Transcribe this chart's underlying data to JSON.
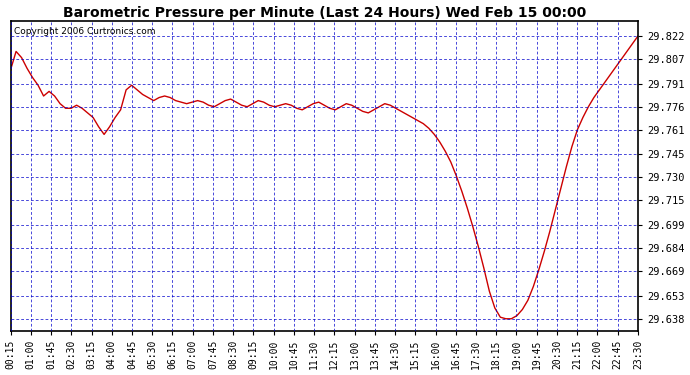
{
  "title": "Barometric Pressure per Minute (Last 24 Hours) Wed Feb 15 00:00",
  "copyright": "Copyright 2006 Curtronics.com",
  "line_color": "#cc0000",
  "background_color": "#ffffff",
  "grid_color": "#0000cc",
  "border_color": "#000000",
  "yticks": [
    29.638,
    29.653,
    29.669,
    29.684,
    29.699,
    29.715,
    29.73,
    29.745,
    29.761,
    29.776,
    29.791,
    29.807,
    29.822
  ],
  "ylim_min": 29.63,
  "ylim_max": 29.832,
  "xtick_labels": [
    "00:15",
    "01:00",
    "01:45",
    "02:30",
    "03:15",
    "04:00",
    "04:45",
    "05:30",
    "06:15",
    "07:00",
    "07:45",
    "08:30",
    "09:15",
    "10:00",
    "10:45",
    "11:30",
    "12:15",
    "13:00",
    "13:45",
    "14:30",
    "15:15",
    "16:00",
    "16:45",
    "17:30",
    "18:15",
    "19:00",
    "19:45",
    "20:30",
    "21:15",
    "22:00",
    "22:45",
    "23:30"
  ],
  "pressure_data": [
    29.8,
    29.812,
    29.808,
    29.801,
    29.795,
    29.79,
    29.783,
    29.786,
    29.783,
    29.778,
    29.775,
    29.775,
    29.777,
    29.775,
    29.772,
    29.769,
    29.763,
    29.758,
    29.763,
    29.769,
    29.774,
    29.787,
    29.79,
    29.787,
    29.784,
    29.782,
    29.78,
    29.782,
    29.783,
    29.782,
    29.78,
    29.779,
    29.778,
    29.779,
    29.78,
    29.779,
    29.777,
    29.776,
    29.778,
    29.78,
    29.781,
    29.779,
    29.777,
    29.776,
    29.778,
    29.78,
    29.779,
    29.777,
    29.776,
    29.777,
    29.778,
    29.777,
    29.775,
    29.774,
    29.776,
    29.778,
    29.779,
    29.777,
    29.775,
    29.774,
    29.776,
    29.778,
    29.777,
    29.775,
    29.773,
    29.772,
    29.774,
    29.776,
    29.778,
    29.777,
    29.775,
    29.773,
    29.771,
    29.769,
    29.767,
    29.765,
    29.762,
    29.758,
    29.753,
    29.747,
    29.74,
    29.731,
    29.721,
    29.71,
    29.698,
    29.685,
    29.671,
    29.656,
    29.645,
    29.639,
    29.638,
    29.638,
    29.64,
    29.644,
    29.65,
    29.659,
    29.67,
    29.682,
    29.695,
    29.709,
    29.723,
    29.737,
    29.75,
    29.761,
    29.769,
    29.776,
    29.782,
    29.787,
    29.792,
    29.797,
    29.802,
    29.807,
    29.812,
    29.817,
    29.822
  ]
}
